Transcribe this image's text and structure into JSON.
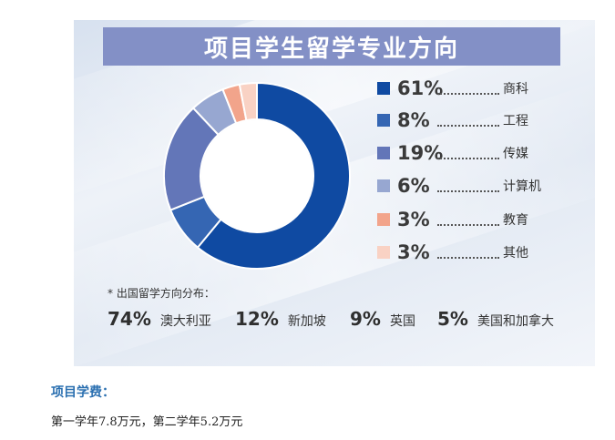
{
  "chart_data": {
    "type": "pie",
    "title": "项目学生留学专业方向",
    "categories": [
      "商科",
      "工程",
      "传媒",
      "计算机",
      "教育",
      "其他"
    ],
    "values": [
      61,
      8,
      19,
      6,
      3,
      3
    ],
    "labels": [
      "61%",
      "8%",
      "19%",
      "6%",
      "3%",
      "3%"
    ],
    "colors": [
      "#0f4aa2",
      "#3566b3",
      "#6376b8",
      "#97a7d1",
      "#f2a48b",
      "#f9d2c4"
    ],
    "legend_position": "right"
  },
  "note": "* 出国留学方向分布：",
  "countries": [
    {
      "pct": "74%",
      "name": "澳大利亚"
    },
    {
      "pct": "12%",
      "name": "新加坡"
    },
    {
      "pct": "9%",
      "name": "英国"
    },
    {
      "pct": "5%",
      "name": "美国和加拿大"
    }
  ],
  "fee": {
    "heading": "项目学费：",
    "text": "第一学年7.8万元，第二学年5.2万元"
  }
}
